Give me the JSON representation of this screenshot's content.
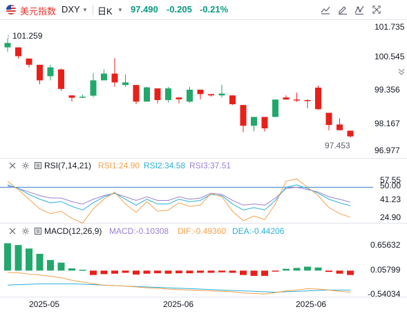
{
  "header": {
    "name": "美元指数",
    "symbol": "DXY",
    "interval": "日K",
    "last": "97.490",
    "change": "-0.205",
    "change_pct": "-0.21%",
    "price_color": "#089981"
  },
  "toolbar": [
    "trend-chart-icon",
    "edit-icon",
    "indicator-icon",
    "fullscreen-icon"
  ],
  "price_pane": {
    "high_marker": "101.259",
    "low_marker": "97.453",
    "axis": [
      "101.735",
      "100.545",
      "99.356",
      "98.167",
      "96.977"
    ],
    "up_color": "#22a86b",
    "down_color": "#e8201a",
    "candles": [
      {
        "o": 100.92,
        "h": 101.26,
        "l": 100.75,
        "c": 101.09
      },
      {
        "o": 100.92,
        "h": 100.92,
        "l": 100.49,
        "c": 100.58
      },
      {
        "o": 100.49,
        "h": 100.49,
        "l": 100.15,
        "c": 100.25
      },
      {
        "o": 100.25,
        "h": 100.25,
        "l": 99.5,
        "c": 99.65
      },
      {
        "o": 99.81,
        "h": 100.25,
        "l": 99.65,
        "c": 100.15
      },
      {
        "o": 100.07,
        "h": 100.1,
        "l": 99.25,
        "c": 99.32
      },
      {
        "o": 99.07,
        "h": 99.07,
        "l": 98.83,
        "c": 98.98
      },
      {
        "o": 98.98,
        "h": 99.1,
        "l": 98.97,
        "c": 99.02
      },
      {
        "o": 99.06,
        "h": 99.93,
        "l": 99.0,
        "c": 99.65
      },
      {
        "o": 99.65,
        "h": 100.07,
        "l": 99.65,
        "c": 99.91
      },
      {
        "o": 99.91,
        "h": 100.51,
        "l": 99.4,
        "c": 99.57
      },
      {
        "o": 99.47,
        "h": 99.88,
        "l": 99.4,
        "c": 99.57
      },
      {
        "o": 99.47,
        "h": 99.47,
        "l": 98.73,
        "c": 98.83
      },
      {
        "o": 98.83,
        "h": 99.4,
        "l": 98.83,
        "c": 99.38
      },
      {
        "o": 99.34,
        "h": 99.34,
        "l": 98.76,
        "c": 98.89
      },
      {
        "o": 98.89,
        "h": 99.4,
        "l": 98.79,
        "c": 99.34
      },
      {
        "o": 98.99,
        "h": 98.99,
        "l": 98.76,
        "c": 98.92
      },
      {
        "o": 98.83,
        "h": 99.4,
        "l": 98.79,
        "c": 99.29
      },
      {
        "o": 99.29,
        "h": 99.29,
        "l": 98.92,
        "c": 99.12
      },
      {
        "o": 99.12,
        "h": 99.12,
        "l": 99.02,
        "c": 99.07
      },
      {
        "o": 99.07,
        "h": 99.48,
        "l": 98.98,
        "c": 99.14
      },
      {
        "o": 99.07,
        "h": 99.07,
        "l": 98.7,
        "c": 98.73
      },
      {
        "o": 98.7,
        "h": 98.7,
        "l": 97.65,
        "c": 97.9
      },
      {
        "o": 97.9,
        "h": 98.24,
        "l": 97.68,
        "c": 98.24
      },
      {
        "o": 98.24,
        "h": 98.24,
        "l": 97.68,
        "c": 97.8
      },
      {
        "o": 98.24,
        "h": 98.91,
        "l": 98.24,
        "c": 98.91
      },
      {
        "o": 98.99,
        "h": 99.07,
        "l": 98.91,
        "c": 98.91
      },
      {
        "o": 98.91,
        "h": 99.17,
        "l": 98.82,
        "c": 98.89
      },
      {
        "o": 98.89,
        "h": 98.92,
        "l": 98.58,
        "c": 98.86
      },
      {
        "o": 99.37,
        "h": 99.45,
        "l": 98.51,
        "c": 98.54
      },
      {
        "o": 98.4,
        "h": 98.4,
        "l": 97.72,
        "c": 97.93
      },
      {
        "o": 97.95,
        "h": 98.19,
        "l": 97.73,
        "c": 97.73
      },
      {
        "o": 97.71,
        "h": 97.71,
        "l": 97.45,
        "c": 97.49
      }
    ]
  },
  "rsi_pane": {
    "title": "RSI(7,14,21)",
    "rsi1": "RSI1:24.90",
    "rsi2": "RSI2:34.58",
    "rsi3": "RSI3:37.51",
    "rsi1_color": "#f5a04a",
    "rsi2_color": "#29b0d9",
    "rsi3_color": "#9a7fd1",
    "axis": [
      "57.55",
      "50.00",
      "41.23",
      "24.90"
    ],
    "rsi1_values": [
      55,
      48,
      40,
      32,
      28,
      30,
      24,
      20,
      32,
      40,
      46,
      36,
      29,
      38,
      30,
      31,
      37,
      34,
      35,
      45,
      42,
      30,
      22,
      26,
      23,
      36,
      55,
      57,
      50,
      43,
      33,
      28,
      24.9
    ],
    "rsi2_values": [
      52,
      49,
      44,
      40,
      37,
      38,
      34,
      31,
      37,
      42,
      45,
      40,
      35,
      40,
      36,
      36,
      40,
      38,
      39,
      44,
      43,
      36,
      31,
      33,
      31,
      39,
      50,
      52,
      49,
      45,
      40,
      37,
      34.6
    ],
    "rsi3_values": [
      51,
      49,
      46,
      43,
      41,
      41,
      38,
      36,
      40,
      43,
      45,
      42,
      39,
      42,
      39,
      39,
      42,
      40,
      41,
      45,
      44,
      39,
      35,
      36,
      35,
      41,
      49,
      50,
      48,
      46,
      42,
      40,
      37.5
    ]
  },
  "macd_pane": {
    "title": "MACD(12,26,9)",
    "macd": "MACD:-0.10308",
    "dif": "DIF:-0.49360",
    "dea": "DEA:-0.44206",
    "macd_color": "#9a7fd1",
    "dif_color": "#f5a04a",
    "dea_color": "#29b0d9",
    "axis": [
      "0.65632",
      "0.05799",
      "-0.54034"
    ],
    "hist": [
      0.62,
      0.58,
      0.5,
      0.38,
      0.24,
      0.18,
      0.05,
      0.02,
      -0.1,
      -0.08,
      -0.07,
      -0.05,
      -0.09,
      -0.07,
      -0.06,
      -0.07,
      -0.06,
      -0.06,
      -0.05,
      -0.05,
      -0.04,
      -0.05,
      -0.1,
      -0.12,
      -0.12,
      -0.02,
      0.04,
      0.06,
      0.09,
      0.07,
      -0.03,
      -0.07,
      -0.1
    ],
    "dif_values": [
      -0.04,
      -0.05,
      -0.08,
      -0.1,
      -0.13,
      -0.16,
      -0.22,
      -0.26,
      -0.3,
      -0.33,
      -0.34,
      -0.35,
      -0.37,
      -0.39,
      -0.4,
      -0.42,
      -0.43,
      -0.44,
      -0.45,
      -0.46,
      -0.47,
      -0.48,
      -0.51,
      -0.52,
      -0.53,
      -0.5,
      -0.46,
      -0.44,
      -0.41,
      -0.42,
      -0.44,
      -0.47,
      -0.49
    ],
    "dea_values": [
      -0.33,
      -0.32,
      -0.31,
      -0.3,
      -0.3,
      -0.3,
      -0.3,
      -0.31,
      -0.32,
      -0.33,
      -0.34,
      -0.35,
      -0.36,
      -0.37,
      -0.38,
      -0.39,
      -0.4,
      -0.41,
      -0.42,
      -0.43,
      -0.44,
      -0.45,
      -0.46,
      -0.47,
      -0.48,
      -0.49,
      -0.48,
      -0.47,
      -0.46,
      -0.45,
      -0.44,
      -0.44,
      -0.44
    ]
  },
  "time_axis": [
    "2025-05",
    "2025-06",
    "2025-06"
  ]
}
